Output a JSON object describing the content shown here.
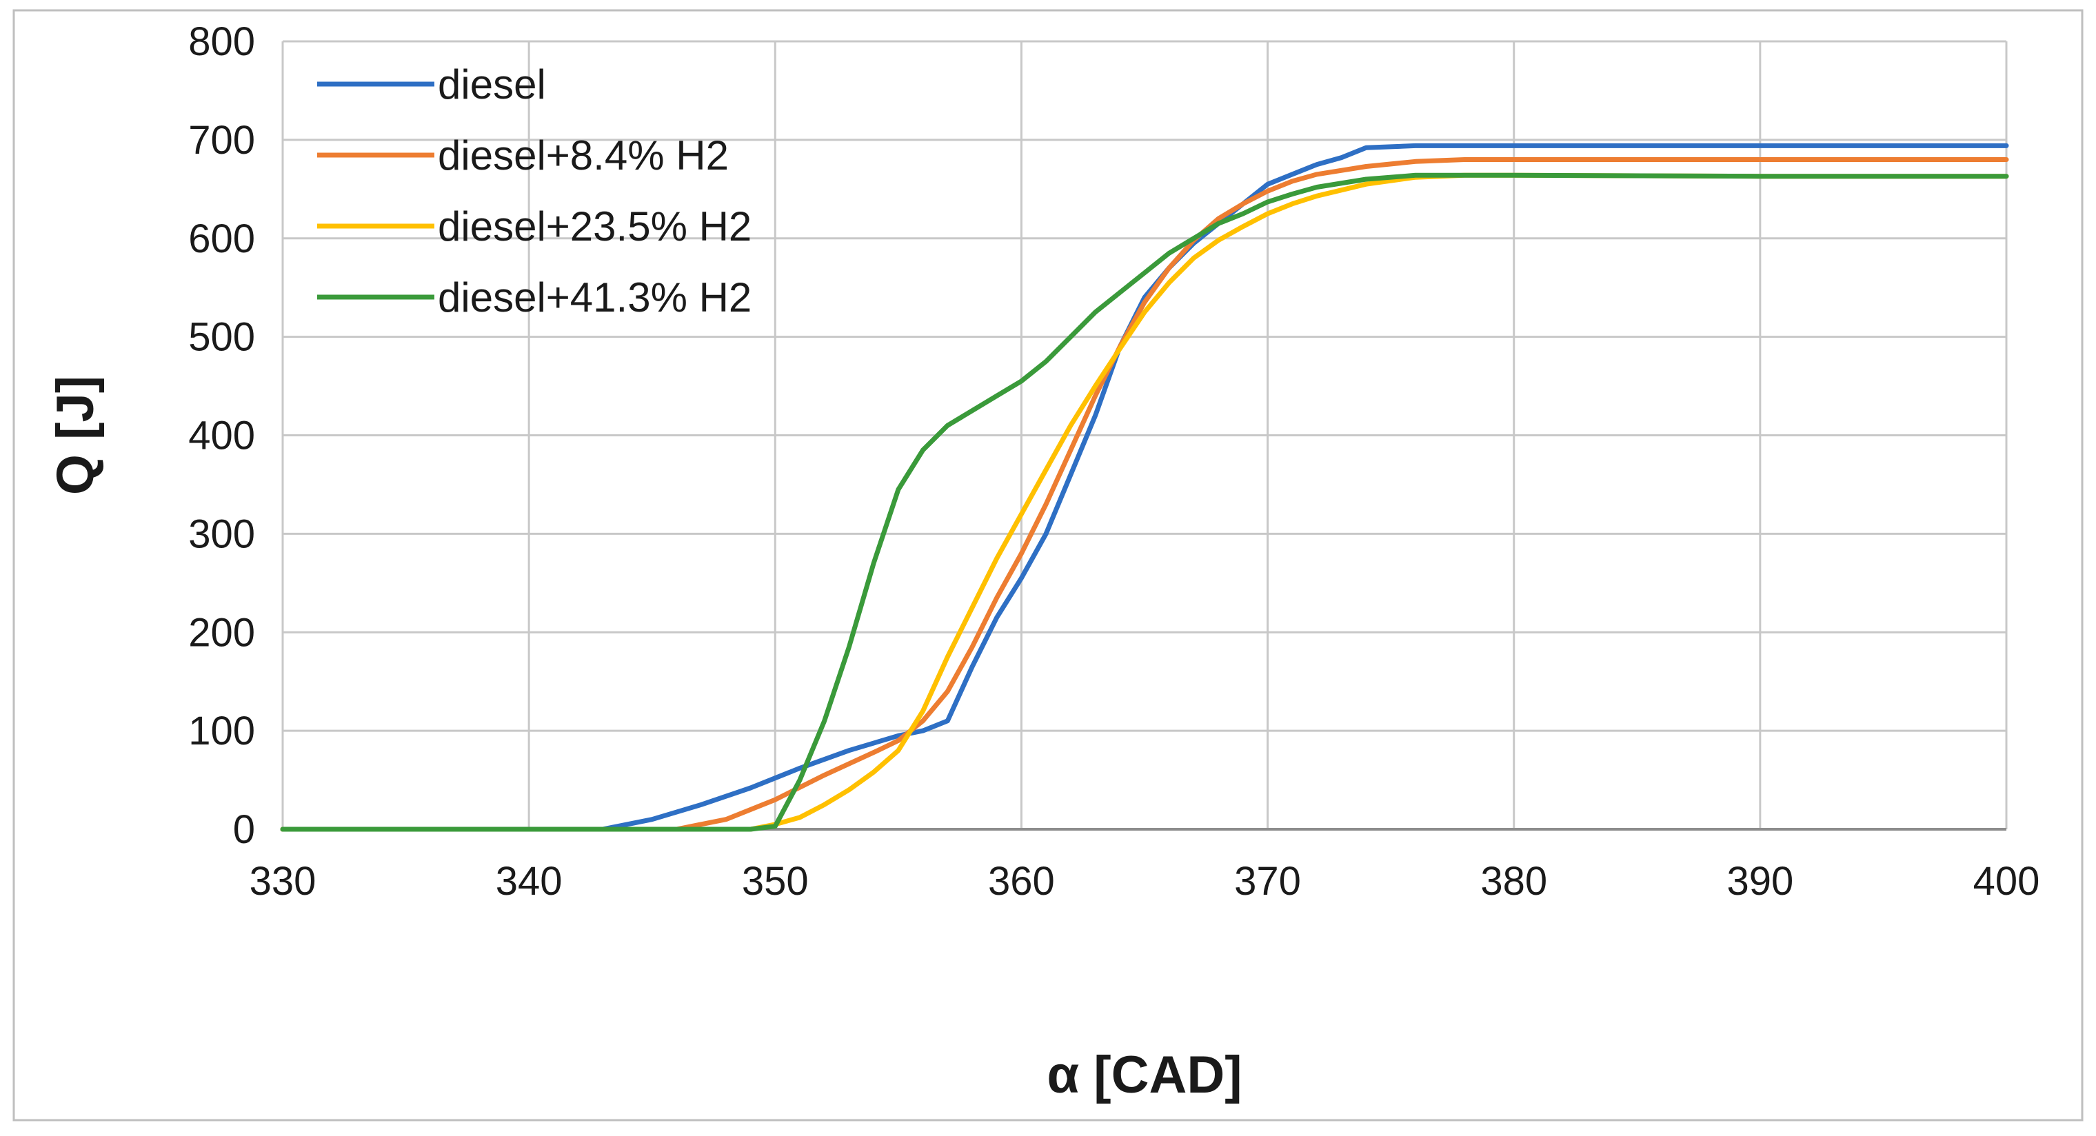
{
  "chart_data": {
    "type": "line",
    "title": "",
    "xlabel": "α [CAD]",
    "ylabel": "Q [J]",
    "xlim": [
      330,
      400
    ],
    "ylim": [
      0,
      800
    ],
    "xticks": [
      330,
      340,
      350,
      360,
      370,
      380,
      390,
      400
    ],
    "yticks": [
      0,
      100,
      200,
      300,
      400,
      500,
      600,
      700,
      800
    ],
    "grid": true,
    "legend_position": "top-left",
    "series": [
      {
        "name": "diesel",
        "color": "#2e6fc4",
        "x": [
          330,
          340,
          343,
          345,
          347,
          349,
          351,
          353,
          355,
          356,
          357,
          358,
          359,
          360,
          361,
          362,
          363,
          364,
          365,
          366,
          367,
          368,
          369,
          370,
          371,
          372,
          373,
          374,
          376,
          380,
          390,
          400
        ],
        "y": [
          0,
          0,
          0,
          10,
          25,
          42,
          62,
          80,
          95,
          100,
          110,
          165,
          215,
          255,
          300,
          360,
          420,
          490,
          540,
          570,
          595,
          615,
          635,
          655,
          665,
          675,
          682,
          692,
          694,
          694,
          694,
          694
        ]
      },
      {
        "name": "diesel+8.4% H2",
        "color": "#ed7d31",
        "x": [
          330,
          346,
          348,
          350,
          352,
          354,
          355,
          356,
          357,
          358,
          359,
          360,
          361,
          362,
          363,
          364,
          365,
          366,
          367,
          368,
          369,
          370,
          371,
          372,
          374,
          376,
          378,
          380,
          390,
          400
        ],
        "y": [
          0,
          0,
          10,
          30,
          55,
          78,
          90,
          110,
          140,
          185,
          235,
          280,
          330,
          385,
          440,
          490,
          535,
          570,
          598,
          620,
          635,
          648,
          658,
          665,
          673,
          678,
          680,
          680,
          680,
          680
        ]
      },
      {
        "name": "diesel+23.5% H2",
        "color": "#ffc000",
        "x": [
          330,
          349,
          350,
          351,
          352,
          353,
          354,
          355,
          356,
          357,
          358,
          359,
          360,
          361,
          362,
          363,
          364,
          365,
          366,
          367,
          368,
          369,
          370,
          371,
          372,
          374,
          376,
          378,
          380,
          390,
          400
        ],
        "y": [
          0,
          0,
          5,
          12,
          25,
          40,
          58,
          80,
          120,
          175,
          225,
          275,
          320,
          365,
          410,
          450,
          488,
          525,
          555,
          580,
          598,
          612,
          625,
          635,
          643,
          655,
          662,
          664,
          664,
          663,
          663
        ]
      },
      {
        "name": "diesel+41.3% H2",
        "color": "#3a9a3a",
        "x": [
          330,
          349,
          350,
          351,
          352,
          353,
          354,
          355,
          356,
          357,
          358,
          359,
          360,
          361,
          362,
          363,
          364,
          365,
          366,
          367,
          368,
          369,
          370,
          371,
          372,
          374,
          376,
          378,
          380,
          390,
          400
        ],
        "y": [
          0,
          0,
          3,
          50,
          110,
          185,
          270,
          345,
          385,
          410,
          425,
          440,
          455,
          475,
          500,
          525,
          545,
          565,
          585,
          600,
          615,
          625,
          637,
          645,
          652,
          660,
          664,
          664,
          664,
          663,
          663
        ]
      }
    ]
  }
}
